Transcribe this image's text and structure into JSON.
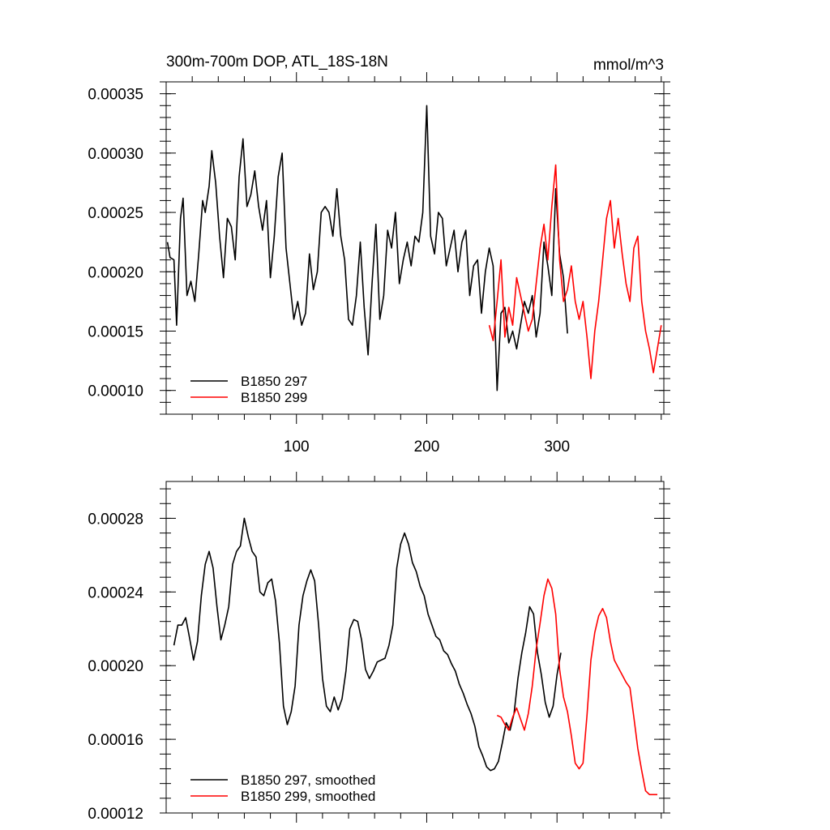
{
  "chart_data": [
    {
      "type": "line",
      "title": "300m-700m DOP, ATL_18S-18N",
      "units": "mmol/m^3",
      "xlabel": "",
      "ylabel": "",
      "xlim": [
        0,
        382
      ],
      "ylim": [
        8e-05,
        0.00036
      ],
      "xticks": [
        100,
        200,
        300
      ],
      "xtick_labels": [
        "100",
        "200",
        "300"
      ],
      "yticks": [
        0.0001,
        0.00015,
        0.0002,
        0.00025,
        0.0003,
        0.00035
      ],
      "ytick_labels": [
        "0.00010",
        "0.00015",
        "0.00020",
        "0.00025",
        "0.00030",
        "0.00035"
      ],
      "grid": false,
      "legend_position": "bottom-left",
      "series": [
        {
          "name": "B1850 297",
          "color": "#000000",
          "x": [
            1,
            3,
            6,
            8,
            11,
            13,
            16,
            19,
            22,
            25,
            28,
            30,
            33,
            35,
            38,
            41,
            44,
            47,
            50,
            53,
            56,
            59,
            62,
            65,
            68,
            71,
            74,
            77,
            80,
            83,
            86,
            89,
            92,
            95,
            98,
            101,
            104,
            107,
            110,
            113,
            116,
            119,
            122,
            125,
            128,
            131,
            134,
            137,
            140,
            143,
            146,
            149,
            152,
            155,
            158,
            161,
            164,
            167,
            170,
            173,
            176,
            179,
            182,
            185,
            188,
            191,
            194,
            197,
            200,
            203,
            206,
            209,
            212,
            215,
            218,
            221,
            224,
            227,
            230,
            233,
            236,
            239,
            242,
            245,
            248,
            251,
            254,
            257,
            260,
            263,
            266,
            269,
            272,
            275,
            278,
            281,
            284,
            287,
            290,
            293,
            296,
            299,
            302,
            305,
            308
          ],
          "values": [
            0.000225,
            0.000212,
            0.00021,
            0.000155,
            0.000245,
            0.000262,
            0.00018,
            0.000192,
            0.000175,
            0.000215,
            0.00026,
            0.00025,
            0.000272,
            0.000302,
            0.000275,
            0.00023,
            0.000195,
            0.000245,
            0.000238,
            0.00021,
            0.00028,
            0.000312,
            0.000255,
            0.000265,
            0.000285,
            0.000255,
            0.000235,
            0.00026,
            0.000195,
            0.00023,
            0.00028,
            0.0003,
            0.00022,
            0.00019,
            0.00016,
            0.000175,
            0.000155,
            0.000165,
            0.000215,
            0.000185,
            0.0002,
            0.00025,
            0.000255,
            0.00025,
            0.00023,
            0.00027,
            0.00023,
            0.00021,
            0.00016,
            0.000155,
            0.00018,
            0.000225,
            0.00017,
            0.00013,
            0.00019,
            0.00024,
            0.00016,
            0.00018,
            0.000235,
            0.00022,
            0.00025,
            0.00019,
            0.00021,
            0.000225,
            0.000205,
            0.00023,
            0.000225,
            0.00025,
            0.00034,
            0.00023,
            0.000215,
            0.00025,
            0.000245,
            0.000205,
            0.00022,
            0.000235,
            0.0002,
            0.000225,
            0.000235,
            0.00018,
            0.000205,
            0.00021,
            0.000165,
            0.0002,
            0.00022,
            0.000205,
            0.0001,
            0.000165,
            0.00017,
            0.00014,
            0.00015,
            0.000135,
            0.000155,
            0.000175,
            0.000165,
            0.00018,
            0.000145,
            0.000165,
            0.000225,
            0.000205,
            0.00018,
            0.00027,
            0.000215,
            0.000195,
            0.000148
          ]
        },
        {
          "name": "B1850 299",
          "color": "#ff0000",
          "x": [
            248,
            251,
            254,
            257,
            260,
            263,
            266,
            269,
            272,
            275,
            278,
            281,
            284,
            287,
            290,
            293,
            296,
            299,
            302,
            305,
            308,
            311,
            314,
            317,
            320,
            323,
            326,
            329,
            332,
            335,
            338,
            341,
            344,
            347,
            350,
            353,
            356,
            359,
            362,
            365,
            368,
            371,
            374,
            377,
            380
          ],
          "values": [
            0.000155,
            0.000142,
            0.000175,
            0.00021,
            0.000145,
            0.00017,
            0.000155,
            0.000195,
            0.00018,
            0.000165,
            0.00015,
            0.00016,
            0.00019,
            0.00022,
            0.00024,
            0.00021,
            0.000255,
            0.00029,
            0.00021,
            0.000175,
            0.000185,
            0.000205,
            0.000175,
            0.00016,
            0.000175,
            0.000145,
            0.00011,
            0.00015,
            0.000175,
            0.00021,
            0.000245,
            0.00026,
            0.00022,
            0.000245,
            0.000215,
            0.00019,
            0.000175,
            0.00022,
            0.00023,
            0.000175,
            0.00015,
            0.000135,
            0.000115,
            0.000135,
            0.000155
          ]
        }
      ]
    },
    {
      "type": "line",
      "title": "",
      "xlabel": "",
      "ylabel": "",
      "xlim": [
        0,
        382
      ],
      "ylim": [
        0.00012,
        0.0003
      ],
      "xticks": [
        100,
        200,
        300
      ],
      "yticks": [
        0.00012,
        0.00016,
        0.0002,
        0.00024,
        0.00028
      ],
      "ytick_labels": [
        "0.00012",
        "0.00016",
        "0.00020",
        "0.00024",
        "0.00028"
      ],
      "grid": false,
      "legend_position": "bottom-left",
      "series": [
        {
          "name": "B1850 297, smoothed",
          "color": "#000000",
          "x": [
            6,
            9,
            12,
            15,
            18,
            21,
            24,
            27,
            30,
            33,
            36,
            39,
            42,
            45,
            48,
            51,
            54,
            57,
            60,
            63,
            66,
            69,
            72,
            75,
            78,
            81,
            84,
            87,
            90,
            93,
            96,
            99,
            102,
            105,
            108,
            111,
            114,
            117,
            120,
            123,
            126,
            129,
            132,
            135,
            138,
            141,
            144,
            147,
            150,
            153,
            156,
            159,
            162,
            165,
            168,
            171,
            174,
            177,
            180,
            183,
            186,
            189,
            192,
            195,
            198,
            201,
            204,
            207,
            210,
            213,
            216,
            219,
            222,
            225,
            228,
            231,
            234,
            237,
            240,
            243,
            246,
            249,
            252,
            255,
            258,
            261,
            264,
            267,
            270,
            273,
            276,
            279,
            282,
            285,
            288,
            291,
            294,
            297,
            300,
            303
          ],
          "values": [
            0.000211,
            0.000222,
            0.000222,
            0.000226,
            0.000215,
            0.000203,
            0.000213,
            0.000238,
            0.000255,
            0.000262,
            0.000253,
            0.000232,
            0.000214,
            0.000222,
            0.000232,
            0.000255,
            0.000262,
            0.000265,
            0.00028,
            0.00027,
            0.000262,
            0.000259,
            0.00024,
            0.000238,
            0.000245,
            0.000247,
            0.000235,
            0.000212,
            0.000178,
            0.000168,
            0.000175,
            0.000189,
            0.000222,
            0.000238,
            0.000246,
            0.000252,
            0.000246,
            0.000222,
            0.000193,
            0.000178,
            0.000175,
            0.000183,
            0.000176,
            0.000182,
            0.000197,
            0.00022,
            0.000225,
            0.000224,
            0.000214,
            0.000198,
            0.000193,
            0.000197,
            0.000202,
            0.000203,
            0.000204,
            0.000211,
            0.000222,
            0.000253,
            0.000266,
            0.000272,
            0.000266,
            0.000256,
            0.000251,
            0.000243,
            0.000238,
            0.000228,
            0.000222,
            0.000216,
            0.000214,
            0.000208,
            0.000206,
            0.000201,
            0.000197,
            0.00019,
            0.000185,
            0.000179,
            0.000174,
            0.000167,
            0.000156,
            0.000151,
            0.000145,
            0.000143,
            0.000144,
            0.000148,
            0.000158,
            0.000169,
            0.000165,
            0.000174,
            0.000193,
            0.000207,
            0.000218,
            0.000232,
            0.000228,
            0.000207,
            0.000195,
            0.00018,
            0.000172,
            0.000178,
            0.000195,
            0.000207
          ]
        },
        {
          "name": "B1850 299, smoothed",
          "color": "#ff0000",
          "x": [
            254,
            257,
            260,
            263,
            266,
            269,
            272,
            275,
            278,
            281,
            284,
            287,
            290,
            293,
            296,
            299,
            302,
            305,
            308,
            311,
            314,
            317,
            320,
            323,
            326,
            329,
            332,
            335,
            338,
            341,
            344,
            347,
            350,
            353,
            356,
            359,
            362,
            365,
            368,
            371,
            374,
            377
          ],
          "values": [
            0.000173,
            0.000172,
            0.000168,
            0.000165,
            0.000172,
            0.000177,
            0.000171,
            0.000165,
            0.000174,
            0.000189,
            0.000209,
            0.000223,
            0.000238,
            0.000247,
            0.000242,
            0.000228,
            0.000198,
            0.000183,
            0.000175,
            0.000162,
            0.000147,
            0.000144,
            0.000147,
            0.000173,
            0.000203,
            0.000218,
            0.000227,
            0.000231,
            0.000226,
            0.000213,
            0.000203,
            0.000199,
            0.000195,
            0.000191,
            0.000188,
            0.000172,
            0.000155,
            0.000143,
            0.000132,
            0.00013,
            0.00013,
            0.00013
          ]
        }
      ]
    }
  ]
}
